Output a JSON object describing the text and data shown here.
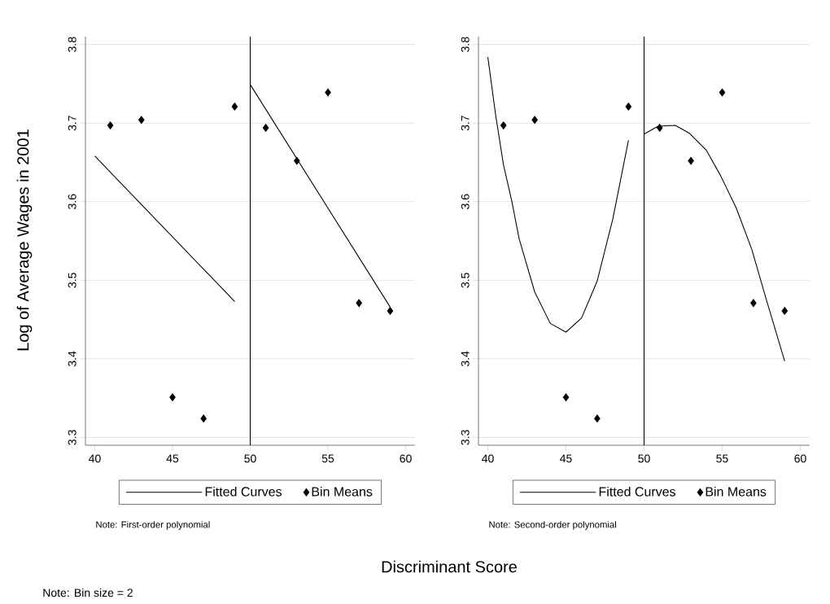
{
  "chart_data": [
    {
      "type": "scatter",
      "ylabel": "Log of Average Wages in 2001",
      "xlabel": "Discriminant Score",
      "xlim": [
        39.4,
        60.6
      ],
      "ylim": [
        3.29,
        3.81
      ],
      "xticks": [
        40,
        45,
        50,
        55,
        60
      ],
      "yticks": [
        3.3,
        3.4,
        3.5,
        3.6,
        3.7,
        3.8
      ],
      "grid": "y",
      "legend": "bottom",
      "ref_lines": [
        {
          "axis": "x",
          "value": 50,
          "color": "#000000"
        }
      ],
      "annotations": [
        "Note: First-order polynomial",
        "Note: Bin size = 2"
      ],
      "series": [
        {
          "name": "Fitted Curves",
          "type": "line",
          "color": "#000000",
          "marker": "none",
          "x": [
            40,
            49,
            49.5,
            50,
            59
          ],
          "values": [
            3.658,
            3.473,
            null,
            3.749,
            3.466
          ]
        },
        {
          "name": "Bin Means",
          "color": "#000000",
          "marker": "diamond",
          "x": [
            41,
            43,
            45,
            47,
            49,
            51,
            53,
            55,
            57,
            59
          ],
          "values": [
            3.697,
            3.704,
            3.351,
            3.324,
            3.721,
            3.694,
            3.652,
            3.739,
            3.471,
            3.461
          ]
        }
      ]
    },
    {
      "type": "scatter",
      "xlim": [
        39.4,
        60.6
      ],
      "ylim": [
        3.29,
        3.81
      ],
      "xticks": [
        40,
        45,
        50,
        55,
        60
      ],
      "yticks": [
        3.3,
        3.4,
        3.5,
        3.6,
        3.7,
        3.8
      ],
      "grid": "y",
      "legend": "bottom",
      "ref_lines": [
        {
          "axis": "x",
          "value": 50,
          "color": "#000000"
        }
      ],
      "annotations": [
        "Note: Second-order polynomial"
      ],
      "series": [
        {
          "name": "Fitted Curves",
          "type": "line",
          "color": "#000000",
          "marker": "none",
          "x": [
            40,
            40.5,
            41,
            41.55,
            42,
            43,
            44,
            45,
            46,
            47,
            48,
            49,
            49.5,
            50,
            50.9,
            52,
            52.9,
            54,
            54.9,
            55.9,
            56.9,
            57.8,
            59
          ],
          "values": [
            3.784,
            3.71,
            3.647,
            3.599,
            3.553,
            3.485,
            3.445,
            3.434,
            3.452,
            3.499,
            3.578,
            3.678,
            null,
            3.686,
            3.696,
            3.697,
            3.687,
            3.665,
            3.633,
            3.592,
            3.539,
            3.477,
            3.397
          ]
        },
        {
          "name": "Bin Means",
          "color": "#000000",
          "marker": "diamond",
          "x": [
            41,
            43,
            45,
            47,
            49,
            51,
            53,
            55,
            57,
            59
          ],
          "values": [
            3.697,
            3.704,
            3.351,
            3.324,
            3.721,
            3.694,
            3.652,
            3.739,
            3.471,
            3.461
          ]
        }
      ]
    }
  ]
}
